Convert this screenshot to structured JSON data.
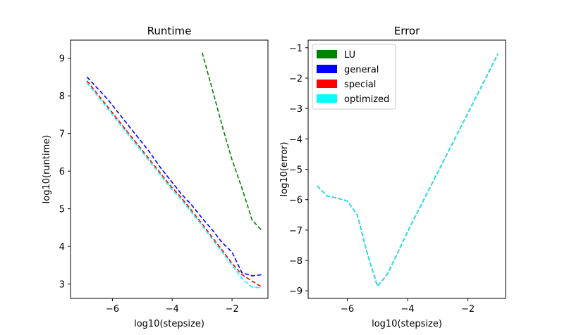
{
  "chart_data": [
    {
      "type": "line",
      "title": "Runtime",
      "xlabel": "log10(stepsize)",
      "ylabel": "log10(runtime)",
      "xlim": [
        -7.4,
        -0.8
      ],
      "ylim": [
        2.62,
        9.48
      ],
      "xticks": [
        -6,
        -4,
        -2
      ],
      "xtick_labels": [
        "−6",
        "−4",
        "−2"
      ],
      "yticks": [
        3,
        4,
        5,
        6,
        7,
        8,
        9
      ],
      "ytick_labels": [
        "3",
        "4",
        "5",
        "6",
        "7",
        "8",
        "9"
      ],
      "grid": false,
      "series": [
        {
          "color": "#008000",
          "x": [
            -3.0,
            -2.67,
            -2.33,
            -2.0,
            -1.67,
            -1.33,
            -1.0
          ],
          "y": [
            9.15,
            8.2,
            7.2,
            6.3,
            5.55,
            4.7,
            4.42
          ]
        },
        {
          "color": "#0000ff",
          "x": [
            -6.85,
            -6.5,
            -6.15,
            -5.8,
            -5.45,
            -5.1,
            -4.75,
            -4.4,
            -4.05,
            -3.7,
            -3.35,
            -3.0,
            -2.67,
            -2.33,
            -2.0,
            -1.67,
            -1.33,
            -1.0
          ],
          "y": [
            8.5,
            8.2,
            7.9,
            7.55,
            7.2,
            6.85,
            6.5,
            6.1,
            5.75,
            5.4,
            5.1,
            4.75,
            4.45,
            4.1,
            3.85,
            3.3,
            3.22,
            3.25
          ]
        },
        {
          "color": "#ff0000",
          "x": [
            -6.85,
            -6.5,
            -6.15,
            -5.8,
            -5.45,
            -5.1,
            -4.75,
            -4.4,
            -4.05,
            -3.7,
            -3.35,
            -3.0,
            -2.67,
            -2.33,
            -2.0,
            -1.67,
            -1.33,
            -1.0
          ],
          "y": [
            8.4,
            8.05,
            7.7,
            7.35,
            7.0,
            6.65,
            6.3,
            5.95,
            5.6,
            5.3,
            4.95,
            4.6,
            4.25,
            3.9,
            3.55,
            3.25,
            3.08,
            2.92
          ]
        },
        {
          "color": "#00ffff",
          "x": [
            -6.85,
            -6.5,
            -6.15,
            -5.8,
            -5.45,
            -5.1,
            -4.75,
            -4.4,
            -4.05,
            -3.7,
            -3.35,
            -3.0,
            -2.67,
            -2.33,
            -2.0,
            -1.67,
            -1.33,
            -1.0
          ],
          "y": [
            8.35,
            8.0,
            7.65,
            7.3,
            6.95,
            6.6,
            6.25,
            5.9,
            5.55,
            5.25,
            4.9,
            4.55,
            4.2,
            3.85,
            3.5,
            3.15,
            2.92,
            2.9
          ]
        }
      ]
    },
    {
      "type": "line",
      "title": "Error",
      "xlabel": "log10(stepsize)",
      "ylabel": "log10(error)",
      "xlim": [
        -7.3,
        -0.75
      ],
      "ylim": [
        -9.25,
        -0.75
      ],
      "xticks": [
        -6,
        -4,
        -2
      ],
      "xtick_labels": [
        "−6",
        "−4",
        "−2"
      ],
      "yticks": [
        -9,
        -8,
        -7,
        -6,
        -5,
        -4,
        -3,
        -2,
        -1
      ],
      "ytick_labels": [
        "−9",
        "−8",
        "−7",
        "−6",
        "−5",
        "−4",
        "−3",
        "−2",
        "−1"
      ],
      "grid": false,
      "legend_position": "top-left",
      "series": [
        {
          "name": "LU",
          "color": "#008000",
          "x": [
            -7.0,
            -6.67,
            -6.33,
            -6.0,
            -5.67,
            -5.33,
            -5.0,
            -4.67,
            -4.33,
            -4.0,
            -3.0,
            -2.0,
            -1.0
          ],
          "y": [
            -5.55,
            -5.88,
            -5.95,
            -6.05,
            -6.5,
            -7.8,
            -8.85,
            -8.45,
            -7.75,
            -7.05,
            -5.1,
            -3.15,
            -1.2
          ]
        },
        {
          "name": "general",
          "color": "#0000ff",
          "x": [
            -7.0,
            -6.67,
            -6.33,
            -6.0,
            -5.67,
            -5.33,
            -5.0,
            -4.67,
            -4.33,
            -4.0,
            -3.0,
            -2.0,
            -1.0
          ],
          "y": [
            -5.55,
            -5.88,
            -5.95,
            -6.05,
            -6.5,
            -7.8,
            -8.85,
            -8.45,
            -7.75,
            -7.05,
            -5.1,
            -3.15,
            -1.2
          ]
        },
        {
          "name": "special",
          "color": "#ff0000",
          "x": [
            -7.0,
            -6.67,
            -6.33,
            -6.0,
            -5.67,
            -5.33,
            -5.0,
            -4.67,
            -4.33,
            -4.0,
            -3.0,
            -2.0,
            -1.0
          ],
          "y": [
            -5.55,
            -5.88,
            -5.95,
            -6.05,
            -6.5,
            -7.8,
            -8.85,
            -8.45,
            -7.75,
            -7.05,
            -5.1,
            -3.15,
            -1.2
          ]
        },
        {
          "name": "optimized",
          "color": "#00ffff",
          "x": [
            -7.0,
            -6.67,
            -6.33,
            -6.0,
            -5.67,
            -5.33,
            -5.0,
            -4.67,
            -4.33,
            -4.0,
            -3.0,
            -2.0,
            -1.0
          ],
          "y": [
            -5.55,
            -5.88,
            -5.95,
            -6.05,
            -6.5,
            -7.8,
            -8.85,
            -8.45,
            -7.75,
            -7.05,
            -5.1,
            -3.15,
            -1.2
          ]
        }
      ]
    }
  ]
}
